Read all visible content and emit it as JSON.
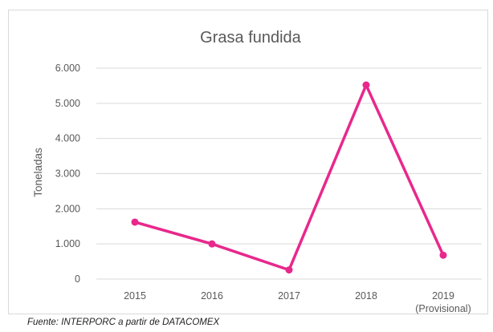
{
  "chart_data": {
    "type": "line",
    "title": "Grasa fundida",
    "ylabel": "Toneladas",
    "xlabel": "",
    "categories": [
      "2015",
      "2016",
      "2017",
      "2018",
      "2019"
    ],
    "category_sublabels": [
      "",
      "",
      "",
      "",
      "(Provisional)"
    ],
    "series": [
      {
        "values": [
          1620,
          1000,
          260,
          5520,
          680
        ],
        "color": "#e8288c"
      }
    ],
    "ylim": [
      0,
      6000
    ],
    "yticks": [
      0,
      1000,
      2000,
      3000,
      4000,
      5000,
      6000
    ],
    "ytick_labels": [
      "0",
      "1.000",
      "2.000",
      "3.000",
      "4.000",
      "5.000",
      "6.000"
    ],
    "grid": true,
    "legend": "none"
  },
  "source": "Fuente: INTERPORC  a partir de DATACOMEX",
  "colors": {
    "gridline": "#d9d9d9",
    "text": "#595959",
    "series": "#e8288c"
  }
}
